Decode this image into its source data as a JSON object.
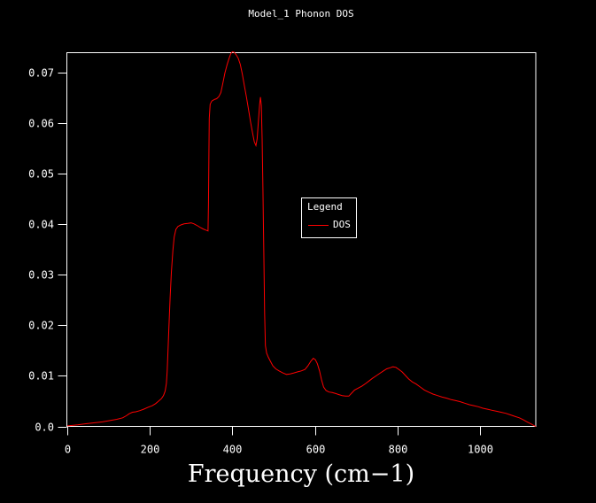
{
  "window": {
    "background": "#000000"
  },
  "chart_data": {
    "type": "line",
    "title": "Model_1 Phonon DOS",
    "xlabel": "Frequency (cm−1)",
    "ylabel": "",
    "xlim": [
      0,
      1135
    ],
    "ylim": [
      0,
      0.074
    ],
    "x_ticks": [
      0,
      200,
      400,
      600,
      800,
      1000
    ],
    "x_tick_labels": [
      "0",
      "200",
      "400",
      "600",
      "800",
      "1000"
    ],
    "y_ticks": [
      0,
      0.01,
      0.02,
      0.03,
      0.04,
      0.05,
      0.06,
      0.07
    ],
    "y_tick_labels": [
      "0.0",
      "0.01",
      "0.02",
      "0.03",
      "0.04",
      "0.05",
      "0.06",
      "0.07"
    ],
    "grid": false,
    "axis_color": "#ffffff",
    "background_color": "#000000",
    "legend": {
      "title": "Legend",
      "position": "inside-upper-middle",
      "entries": [
        {
          "label": "DOS",
          "color": "#ff0000",
          "style": "line"
        }
      ]
    },
    "series": [
      {
        "name": "DOS",
        "color": "#ff0000",
        "points": [
          [
            0,
            0.0001
          ],
          [
            12,
            0.0002
          ],
          [
            25,
            0.0003
          ],
          [
            43,
            0.0005
          ],
          [
            64,
            0.0007
          ],
          [
            85,
            0.0009
          ],
          [
            105,
            0.0012
          ],
          [
            120,
            0.0014
          ],
          [
            134,
            0.0017
          ],
          [
            143,
            0.0021
          ],
          [
            150,
            0.0025
          ],
          [
            158,
            0.0028
          ],
          [
            166,
            0.0029
          ],
          [
            175,
            0.0031
          ],
          [
            185,
            0.0034
          ],
          [
            196,
            0.0038
          ],
          [
            206,
            0.0041
          ],
          [
            214,
            0.0045
          ],
          [
            221,
            0.005
          ],
          [
            228,
            0.0055
          ],
          [
            233,
            0.0061
          ],
          [
            237,
            0.007
          ],
          [
            240,
            0.0085
          ],
          [
            242,
            0.011
          ],
          [
            244,
            0.015
          ],
          [
            246,
            0.0195
          ],
          [
            249,
            0.0255
          ],
          [
            252,
            0.0305
          ],
          [
            256,
            0.035
          ],
          [
            259,
            0.0375
          ],
          [
            263,
            0.039
          ],
          [
            268,
            0.0396
          ],
          [
            275,
            0.0399
          ],
          [
            283,
            0.0401
          ],
          [
            292,
            0.0402
          ],
          [
            300,
            0.0403
          ],
          [
            307,
            0.0401
          ],
          [
            314,
            0.0398
          ],
          [
            322,
            0.0394
          ],
          [
            329,
            0.0391
          ],
          [
            335,
            0.0389
          ],
          [
            341,
            0.0387
          ],
          [
            342,
            0.044
          ],
          [
            343,
            0.054
          ],
          [
            344,
            0.061
          ],
          [
            346,
            0.0638
          ],
          [
            350,
            0.0644
          ],
          [
            356,
            0.0647
          ],
          [
            362,
            0.0649
          ],
          [
            367,
            0.0653
          ],
          [
            372,
            0.0661
          ],
          [
            377,
            0.068
          ],
          [
            382,
            0.07
          ],
          [
            387,
            0.0716
          ],
          [
            392,
            0.0729
          ],
          [
            396,
            0.0738
          ],
          [
            400,
            0.0742
          ],
          [
            404,
            0.0741
          ],
          [
            409,
            0.0736
          ],
          [
            414,
            0.0729
          ],
          [
            419,
            0.0717
          ],
          [
            424,
            0.0698
          ],
          [
            429,
            0.0675
          ],
          [
            434,
            0.0652
          ],
          [
            439,
            0.0628
          ],
          [
            444,
            0.0603
          ],
          [
            449,
            0.058
          ],
          [
            453,
            0.0564
          ],
          [
            457,
            0.0556
          ],
          [
            460,
            0.057
          ],
          [
            463,
            0.0605
          ],
          [
            466,
            0.0638
          ],
          [
            468,
            0.0652
          ],
          [
            470,
            0.0635
          ],
          [
            472,
            0.057
          ],
          [
            474,
            0.047
          ],
          [
            476,
            0.0345
          ],
          [
            478,
            0.0225
          ],
          [
            480,
            0.016
          ],
          [
            483,
            0.0145
          ],
          [
            487,
            0.0137
          ],
          [
            492,
            0.0129
          ],
          [
            498,
            0.012
          ],
          [
            505,
            0.0114
          ],
          [
            513,
            0.011
          ],
          [
            522,
            0.0106
          ],
          [
            531,
            0.0103
          ],
          [
            540,
            0.0104
          ],
          [
            549,
            0.0106
          ],
          [
            558,
            0.0108
          ],
          [
            567,
            0.011
          ],
          [
            576,
            0.0113
          ],
          [
            583,
            0.012
          ],
          [
            590,
            0.0129
          ],
          [
            596,
            0.0135
          ],
          [
            601,
            0.0132
          ],
          [
            606,
            0.0124
          ],
          [
            611,
            0.011
          ],
          [
            616,
            0.0092
          ],
          [
            621,
            0.0078
          ],
          [
            627,
            0.0071
          ],
          [
            634,
            0.0068
          ],
          [
            642,
            0.0067
          ],
          [
            650,
            0.0065
          ],
          [
            658,
            0.0063
          ],
          [
            666,
            0.0061
          ],
          [
            674,
            0.006
          ],
          [
            682,
            0.006
          ],
          [
            689,
            0.0066
          ],
          [
            696,
            0.0072
          ],
          [
            705,
            0.0076
          ],
          [
            714,
            0.008
          ],
          [
            723,
            0.0085
          ],
          [
            731,
            0.009
          ],
          [
            739,
            0.0095
          ],
          [
            748,
            0.01
          ],
          [
            757,
            0.0105
          ],
          [
            766,
            0.011
          ],
          [
            774,
            0.0114
          ],
          [
            782,
            0.0116
          ],
          [
            789,
            0.0118
          ],
          [
            796,
            0.0117
          ],
          [
            803,
            0.0113
          ],
          [
            811,
            0.0108
          ],
          [
            819,
            0.0101
          ],
          [
            827,
            0.0094
          ],
          [
            836,
            0.0088
          ],
          [
            845,
            0.0084
          ],
          [
            855,
            0.0078
          ],
          [
            865,
            0.0072
          ],
          [
            875,
            0.0068
          ],
          [
            886,
            0.0064
          ],
          [
            897,
            0.0061
          ],
          [
            908,
            0.0058
          ],
          [
            919,
            0.0056
          ],
          [
            930,
            0.0053
          ],
          [
            941,
            0.0051
          ],
          [
            952,
            0.0049
          ],
          [
            963,
            0.0046
          ],
          [
            974,
            0.0043
          ],
          [
            985,
            0.0041
          ],
          [
            996,
            0.0039
          ],
          [
            1007,
            0.0036
          ],
          [
            1018,
            0.0034
          ],
          [
            1029,
            0.0032
          ],
          [
            1040,
            0.003
          ],
          [
            1051,
            0.0028
          ],
          [
            1062,
            0.0026
          ],
          [
            1073,
            0.0023
          ],
          [
            1084,
            0.002
          ],
          [
            1095,
            0.0017
          ],
          [
            1105,
            0.0013
          ],
          [
            1114,
            0.0009
          ],
          [
            1123,
            0.0005
          ],
          [
            1130,
            0.0002
          ],
          [
            1135,
            0
          ]
        ]
      }
    ]
  }
}
